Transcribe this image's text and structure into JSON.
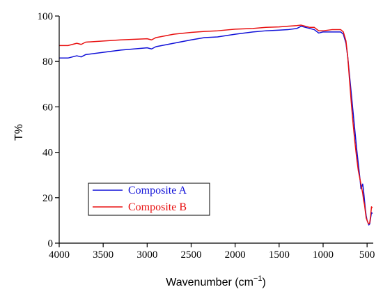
{
  "chart_data": {
    "type": "line",
    "xlabel": "Wavenumber (cm",
    "xlabel_sup": "−1",
    "xlabel_close": ")",
    "ylabel": "T%",
    "xlim": [
      4000,
      430
    ],
    "ylim": [
      0,
      100
    ],
    "x_ticks": [
      4000,
      3500,
      3000,
      2500,
      2000,
      1500,
      1000,
      500
    ],
    "y_ticks": [
      0,
      20,
      40,
      60,
      80,
      100
    ],
    "legend_position": "lower-left",
    "series": [
      {
        "name": "Composite A",
        "color": "#1010d8",
        "x": [
          4000,
          3900,
          3800,
          3750,
          3700,
          3500,
          3300,
          3000,
          2950,
          2900,
          2700,
          2500,
          2350,
          2200,
          2000,
          1800,
          1650,
          1500,
          1400,
          1300,
          1250,
          1200,
          1150,
          1100,
          1050,
          1000,
          900,
          800,
          770,
          740,
          720,
          700,
          680,
          660,
          640,
          620,
          600,
          580,
          570,
          560,
          550,
          540,
          530,
          520,
          510,
          500,
          490,
          480,
          470,
          460,
          450,
          440
        ],
        "y": [
          81.5,
          81.5,
          82.5,
          82.0,
          83.0,
          84.0,
          85.0,
          86.0,
          85.5,
          86.5,
          88.0,
          89.5,
          90.5,
          90.8,
          92.0,
          93.0,
          93.5,
          93.8,
          94.0,
          94.5,
          95.5,
          95.0,
          94.5,
          94.0,
          92.5,
          93.0,
          93.0,
          93.0,
          92.0,
          88.0,
          82.0,
          74.0,
          66.0,
          58.0,
          50.0,
          42.0,
          35.0,
          28.0,
          24.0,
          25.0,
          26.0,
          23.0,
          19.0,
          15.0,
          12.0,
          10.0,
          9.0,
          8.0,
          8.5,
          11.0,
          13.5,
          13.0
        ]
      },
      {
        "name": "Composite B",
        "color": "#e81010",
        "x": [
          4000,
          3900,
          3800,
          3750,
          3700,
          3500,
          3300,
          3000,
          2950,
          2900,
          2700,
          2500,
          2350,
          2200,
          2000,
          1800,
          1650,
          1500,
          1400,
          1300,
          1250,
          1200,
          1150,
          1100,
          1050,
          1000,
          900,
          800,
          770,
          740,
          720,
          700,
          680,
          660,
          640,
          620,
          600,
          580,
          570,
          560,
          550,
          540,
          530,
          520,
          510,
          500,
          490,
          480,
          470,
          460,
          450,
          440
        ],
        "y": [
          87.0,
          87.0,
          88.0,
          87.5,
          88.5,
          89.0,
          89.5,
          90.0,
          89.5,
          90.5,
          92.0,
          92.8,
          93.2,
          93.5,
          94.2,
          94.5,
          95.0,
          95.2,
          95.5,
          95.8,
          96.0,
          95.5,
          95.0,
          95.0,
          93.5,
          93.5,
          94.0,
          94.0,
          93.0,
          89.0,
          82.0,
          72.0,
          62.0,
          53.0,
          45.0,
          38.0,
          32.0,
          28.0,
          26.0,
          24.0,
          22.0,
          19.0,
          17.0,
          14.0,
          11.0,
          10.0,
          9.0,
          8.5,
          9.0,
          12.0,
          16.0,
          15.5
        ]
      }
    ]
  }
}
